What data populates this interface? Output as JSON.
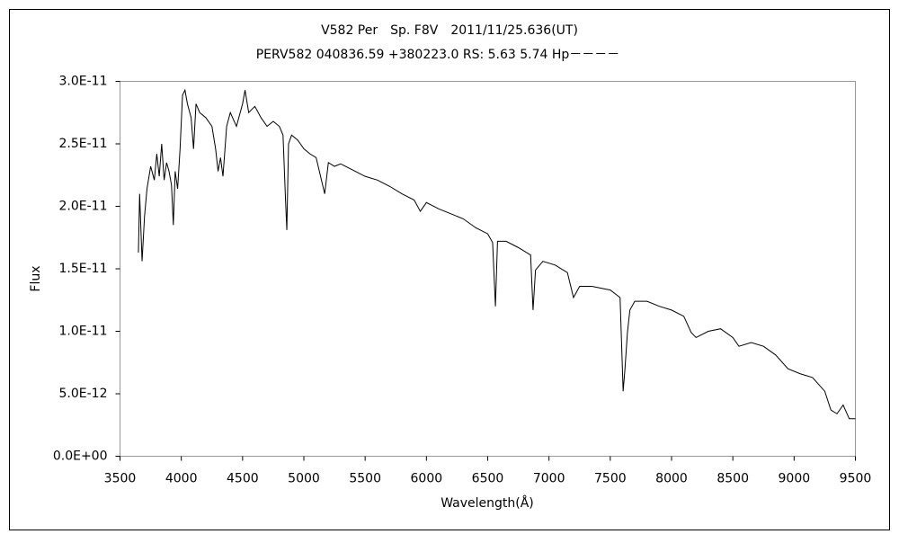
{
  "chart_data": {
    "type": "line",
    "title": "V582 Per　Sp. F8V　2011/11/25.636(UT)",
    "subtitle": "PERV582 040836.59 +380223.0 RS: 5.63 5.74 Hp－－－－",
    "x_label": "Wavelength(Å)",
    "y_label": "Flux",
    "xlim": [
      3500,
      9500
    ],
    "xticks": [
      3500,
      4000,
      4500,
      5000,
      5500,
      6000,
      6500,
      7000,
      7500,
      8000,
      8500,
      9000,
      9500
    ],
    "ylim": [
      0,
      3e-11
    ],
    "yticks": [
      {
        "value": 0,
        "label": "0.0E+00"
      },
      {
        "value": 5e-12,
        "label": "5.0E-12"
      },
      {
        "value": 1e-11,
        "label": "1.0E-11"
      },
      {
        "value": 1.5e-11,
        "label": "1.5E-11"
      },
      {
        "value": 2e-11,
        "label": "2.0E-11"
      },
      {
        "value": 2.5e-11,
        "label": "2.5E-11"
      },
      {
        "value": 3e-11,
        "label": "3.0E-11"
      }
    ],
    "color": "#000000",
    "x": [
      3650,
      3660,
      3680,
      3700,
      3720,
      3750,
      3780,
      3800,
      3820,
      3840,
      3860,
      3880,
      3900,
      3920,
      3935,
      3950,
      3970,
      3990,
      4010,
      4030,
      4050,
      4080,
      4100,
      4120,
      4150,
      4200,
      4250,
      4280,
      4300,
      4320,
      4340,
      4370,
      4400,
      4450,
      4500,
      4520,
      4550,
      4600,
      4650,
      4700,
      4750,
      4800,
      4830,
      4850,
      4861,
      4875,
      4900,
      4950,
      5000,
      5050,
      5100,
      5170,
      5200,
      5250,
      5300,
      5400,
      5500,
      5600,
      5700,
      5800,
      5900,
      5950,
      6000,
      6100,
      6200,
      6300,
      6400,
      6500,
      6540,
      6563,
      6580,
      6650,
      6750,
      6850,
      6870,
      6890,
      6950,
      7050,
      7150,
      7200,
      7250,
      7350,
      7500,
      7580,
      7605,
      7620,
      7640,
      7660,
      7700,
      7800,
      7900,
      8000,
      8100,
      8160,
      8200,
      8300,
      8400,
      8500,
      8550,
      8650,
      8750,
      8850,
      8950,
      9050,
      9150,
      9250,
      9300,
      9350,
      9400,
      9450,
      9500
    ],
    "values": [
      1.63e-11,
      2.1e-11,
      1.56e-11,
      1.92e-11,
      2.14e-11,
      2.32e-11,
      2.21e-11,
      2.42e-11,
      2.24e-11,
      2.5e-11,
      2.21e-11,
      2.35e-11,
      2.28e-11,
      2.17e-11,
      1.85e-11,
      2.28e-11,
      2.14e-11,
      2.46e-11,
      2.89e-11,
      2.93e-11,
      2.82e-11,
      2.71e-11,
      2.46e-11,
      2.82e-11,
      2.75e-11,
      2.71e-11,
      2.64e-11,
      2.46e-11,
      2.28e-11,
      2.39e-11,
      2.24e-11,
      2.64e-11,
      2.75e-11,
      2.64e-11,
      2.82e-11,
      2.93e-11,
      2.75e-11,
      2.8e-11,
      2.71e-11,
      2.64e-11,
      2.68e-11,
      2.64e-11,
      2.57e-11,
      2.06e-11,
      1.81e-11,
      2.5e-11,
      2.57e-11,
      2.53e-11,
      2.46e-11,
      2.42e-11,
      2.39e-11,
      2.1e-11,
      2.35e-11,
      2.32e-11,
      2.34e-11,
      2.29e-11,
      2.24e-11,
      2.21e-11,
      2.16e-11,
      2.1e-11,
      2.05e-11,
      1.96e-11,
      2.03e-11,
      1.98e-11,
      1.94e-11,
      1.9e-11,
      1.83e-11,
      1.78e-11,
      1.71e-11,
      1.2e-11,
      1.72e-11,
      1.72e-11,
      1.67e-11,
      1.61e-11,
      1.17e-11,
      1.49e-11,
      1.56e-11,
      1.53e-11,
      1.47e-11,
      1.27e-11,
      1.36e-11,
      1.36e-11,
      1.33e-11,
      1.27e-11,
      5.2e-12,
      7e-12,
      9.9e-12,
      1.17e-11,
      1.24e-11,
      1.24e-11,
      1.2e-11,
      1.17e-11,
      1.12e-11,
      9.9e-12,
      9.5e-12,
      1e-11,
      1.02e-11,
      9.5e-12,
      8.8e-12,
      9.1e-12,
      8.8e-12,
      8.1e-12,
      7e-12,
      6.6e-12,
      6.3e-12,
      5.2e-12,
      3.7e-12,
      3.4e-12,
      4.1e-12,
      3e-12,
      3e-12
    ]
  }
}
